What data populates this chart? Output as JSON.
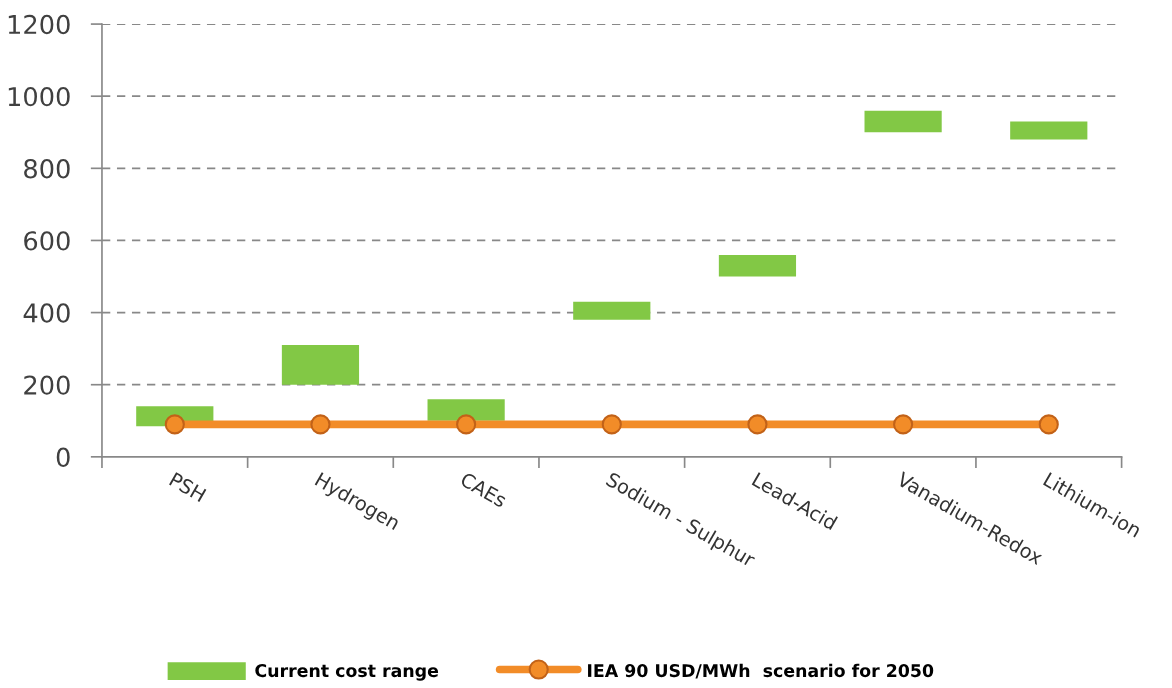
{
  "chart_data": {
    "type": "bar",
    "categories": [
      "PSH",
      "Hydrogen",
      "CAEs",
      "Sodium - Sulphur",
      "Lead-Acid",
      "Vanadium-Redox",
      "Lithium-ion"
    ],
    "series": [
      {
        "name": "Current cost range",
        "color": "#82c845",
        "base": [
          85,
          200,
          100,
          380,
          500,
          900,
          880
        ],
        "values": [
          55,
          110,
          60,
          50,
          60,
          60,
          50
        ]
      },
      {
        "name": "IEA 90 USD/MWh  scenario for 2050",
        "type": "line",
        "color": "#f28c28",
        "marker": "circle",
        "line_style": "solid",
        "values": [
          90,
          90,
          90,
          90,
          90,
          90,
          90
        ]
      }
    ],
    "ylim": [
      0,
      1200
    ],
    "yticks": [
      0,
      200,
      400,
      600,
      800,
      1000,
      1200
    ],
    "grid": "y",
    "legend": "bottom"
  }
}
